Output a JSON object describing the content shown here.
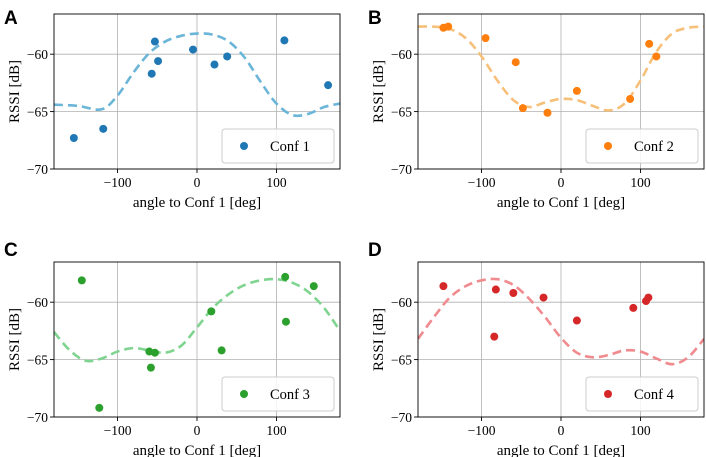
{
  "chart_data": [
    {
      "type": "scatter",
      "panel_label": "A",
      "xlabel": "angle to Conf 1 [deg]",
      "ylabel": "RSSI [dB]",
      "xlim": [
        -180,
        180
      ],
      "ylim": [
        -70,
        -56.5
      ],
      "xticks": [
        -100,
        0,
        100
      ],
      "yticks": [
        -70,
        -65,
        -60
      ],
      "tick_labels": {
        "x": [
          "−100",
          "0",
          "100"
        ],
        "y": [
          "−70",
          "−65",
          "−60"
        ]
      },
      "grid": true,
      "legend": "Conf 1",
      "legend_position": "lower-right",
      "color": "#1f77b4",
      "fit_color": "#6bb5d8",
      "points": [
        {
          "x": -155,
          "y": -67.3
        },
        {
          "x": -118,
          "y": -66.5
        },
        {
          "x": -57,
          "y": -61.7
        },
        {
          "x": -53,
          "y": -58.9
        },
        {
          "x": -49,
          "y": -60.6
        },
        {
          "x": -5,
          "y": -59.6
        },
        {
          "x": 22,
          "y": -60.9
        },
        {
          "x": 38,
          "y": -60.2
        },
        {
          "x": 110,
          "y": -58.8
        },
        {
          "x": 165,
          "y": -62.7
        }
      ],
      "fit": [
        {
          "x": -180,
          "y": -64.4
        },
        {
          "x": -150,
          "y": -64.5
        },
        {
          "x": -120,
          "y": -64.8
        },
        {
          "x": -100,
          "y": -63.6
        },
        {
          "x": -80,
          "y": -61.6
        },
        {
          "x": -60,
          "y": -59.9
        },
        {
          "x": -40,
          "y": -58.9
        },
        {
          "x": -20,
          "y": -58.4
        },
        {
          "x": 0,
          "y": -58.2
        },
        {
          "x": 20,
          "y": -58.3
        },
        {
          "x": 40,
          "y": -58.9
        },
        {
          "x": 60,
          "y": -60.3
        },
        {
          "x": 80,
          "y": -62.4
        },
        {
          "x": 100,
          "y": -64.3
        },
        {
          "x": 120,
          "y": -65.3
        },
        {
          "x": 140,
          "y": -65.2
        },
        {
          "x": 160,
          "y": -64.6
        },
        {
          "x": 180,
          "y": -64.3
        }
      ]
    },
    {
      "type": "scatter",
      "panel_label": "B",
      "xlabel": "angle to Conf 1 [deg]",
      "ylabel": "RSSI [dB]",
      "xlim": [
        -180,
        180
      ],
      "ylim": [
        -70,
        -56.5
      ],
      "xticks": [
        -100,
        0,
        100
      ],
      "yticks": [
        -70,
        -65,
        -60
      ],
      "tick_labels": {
        "x": [
          "−100",
          "0",
          "100"
        ],
        "y": [
          "−70",
          "−65",
          "−60"
        ]
      },
      "grid": true,
      "legend": "Conf 2",
      "legend_position": "lower-right",
      "color": "#ff7f0e",
      "fit_color": "#f7c07a",
      "points": [
        {
          "x": -148,
          "y": -57.7
        },
        {
          "x": -142,
          "y": -57.6
        },
        {
          "x": -95,
          "y": -58.6
        },
        {
          "x": -57,
          "y": -60.7
        },
        {
          "x": -48,
          "y": -64.7
        },
        {
          "x": -17,
          "y": -65.1
        },
        {
          "x": 20,
          "y": -63.2
        },
        {
          "x": 87,
          "y": -63.9
        },
        {
          "x": 111,
          "y": -59.1
        },
        {
          "x": 120,
          "y": -60.2
        }
      ],
      "fit": [
        {
          "x": -180,
          "y": -57.6
        },
        {
          "x": -160,
          "y": -57.6
        },
        {
          "x": -140,
          "y": -57.8
        },
        {
          "x": -120,
          "y": -58.6
        },
        {
          "x": -100,
          "y": -60.2
        },
        {
          "x": -80,
          "y": -62.3
        },
        {
          "x": -60,
          "y": -64.0
        },
        {
          "x": -40,
          "y": -64.6
        },
        {
          "x": -20,
          "y": -64.2
        },
        {
          "x": 0,
          "y": -63.9
        },
        {
          "x": 20,
          "y": -64.0
        },
        {
          "x": 40,
          "y": -64.5
        },
        {
          "x": 60,
          "y": -64.9
        },
        {
          "x": 80,
          "y": -64.3
        },
        {
          "x": 100,
          "y": -62.3
        },
        {
          "x": 120,
          "y": -59.8
        },
        {
          "x": 140,
          "y": -58.2
        },
        {
          "x": 160,
          "y": -57.7
        },
        {
          "x": 180,
          "y": -57.6
        }
      ]
    },
    {
      "type": "scatter",
      "panel_label": "C",
      "xlabel": "angle to Conf 1 [deg]",
      "ylabel": "RSSI [dB]",
      "xlim": [
        -180,
        180
      ],
      "ylim": [
        -70,
        -56.5
      ],
      "xticks": [
        -100,
        0,
        100
      ],
      "yticks": [
        -70,
        -65,
        -60
      ],
      "tick_labels": {
        "x": [
          "−100",
          "0",
          "100"
        ],
        "y": [
          "−70",
          "−65",
          "−60"
        ]
      },
      "grid": true,
      "legend": "Conf 3",
      "legend_position": "lower-right",
      "color": "#2ca02c",
      "fit_color": "#7fd48f",
      "points": [
        {
          "x": -145,
          "y": -58.1
        },
        {
          "x": -123,
          "y": -69.2
        },
        {
          "x": -60,
          "y": -64.3
        },
        {
          "x": -58,
          "y": -65.7
        },
        {
          "x": -53,
          "y": -64.4
        },
        {
          "x": 18,
          "y": -60.8
        },
        {
          "x": 31,
          "y": -64.2
        },
        {
          "x": 111,
          "y": -57.8
        },
        {
          "x": 112,
          "y": -61.7
        },
        {
          "x": 147,
          "y": -58.6
        }
      ],
      "fit": [
        {
          "x": -180,
          "y": -62.6
        },
        {
          "x": -160,
          "y": -64.2
        },
        {
          "x": -140,
          "y": -65.1
        },
        {
          "x": -120,
          "y": -64.9
        },
        {
          "x": -100,
          "y": -64.3
        },
        {
          "x": -80,
          "y": -64.0
        },
        {
          "x": -60,
          "y": -64.2
        },
        {
          "x": -40,
          "y": -64.4
        },
        {
          "x": -20,
          "y": -63.8
        },
        {
          "x": 0,
          "y": -62.2
        },
        {
          "x": 20,
          "y": -60.5
        },
        {
          "x": 40,
          "y": -59.3
        },
        {
          "x": 60,
          "y": -58.5
        },
        {
          "x": 80,
          "y": -58.1
        },
        {
          "x": 100,
          "y": -58.0
        },
        {
          "x": 120,
          "y": -58.3
        },
        {
          "x": 140,
          "y": -59.1
        },
        {
          "x": 160,
          "y": -60.5
        },
        {
          "x": 180,
          "y": -62.5
        }
      ]
    },
    {
      "type": "scatter",
      "panel_label": "D",
      "xlabel": "angle to Conf 1 [deg]",
      "ylabel": "RSSI [dB]",
      "xlim": [
        -180,
        180
      ],
      "ylim": [
        -70,
        -56.5
      ],
      "xticks": [
        -100,
        0,
        100
      ],
      "yticks": [
        -70,
        -65,
        -60
      ],
      "tick_labels": {
        "x": [
          "−100",
          "0",
          "100"
        ],
        "y": [
          "−70",
          "−65",
          "−60"
        ]
      },
      "grid": true,
      "legend": "Conf 4",
      "legend_position": "lower-right",
      "color": "#d62728",
      "fit_color": "#f08a8e",
      "points": [
        {
          "x": -148,
          "y": -58.6
        },
        {
          "x": -84,
          "y": -63.0
        },
        {
          "x": -82,
          "y": -58.9
        },
        {
          "x": -60,
          "y": -59.2
        },
        {
          "x": -22,
          "y": -59.6
        },
        {
          "x": 20,
          "y": -61.6
        },
        {
          "x": 91,
          "y": -60.5
        },
        {
          "x": 107,
          "y": -59.9
        },
        {
          "x": 110,
          "y": -59.6
        }
      ],
      "fit": [
        {
          "x": -180,
          "y": -63.2
        },
        {
          "x": -160,
          "y": -61.3
        },
        {
          "x": -140,
          "y": -59.6
        },
        {
          "x": -120,
          "y": -58.6
        },
        {
          "x": -100,
          "y": -58.1
        },
        {
          "x": -80,
          "y": -58.0
        },
        {
          "x": -60,
          "y": -58.5
        },
        {
          "x": -40,
          "y": -59.7
        },
        {
          "x": -20,
          "y": -61.3
        },
        {
          "x": 0,
          "y": -63.1
        },
        {
          "x": 20,
          "y": -64.4
        },
        {
          "x": 40,
          "y": -64.8
        },
        {
          "x": 60,
          "y": -64.6
        },
        {
          "x": 80,
          "y": -64.2
        },
        {
          "x": 100,
          "y": -64.3
        },
        {
          "x": 120,
          "y": -64.9
        },
        {
          "x": 140,
          "y": -65.4
        },
        {
          "x": 160,
          "y": -64.8
        },
        {
          "x": 180,
          "y": -63.2
        }
      ]
    }
  ]
}
